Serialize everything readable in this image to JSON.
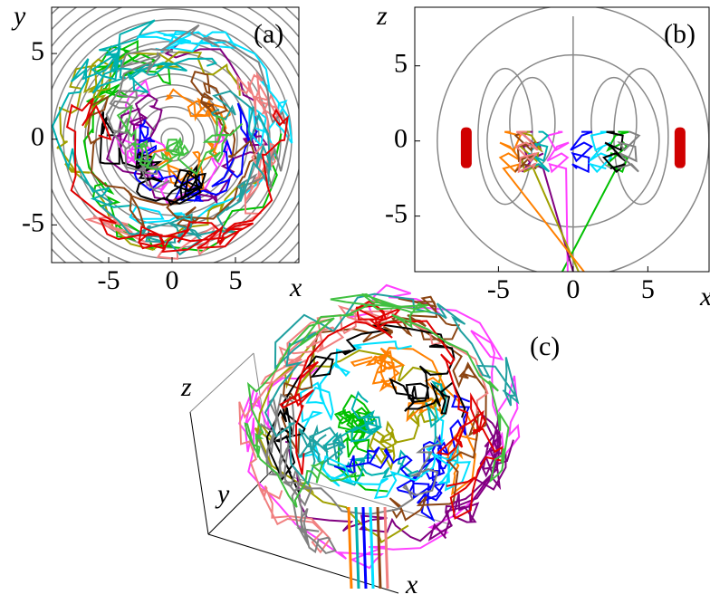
{
  "chart_data": [
    {
      "type": "contour",
      "label": "(a)",
      "xlabel": "x",
      "ylabel": "y",
      "xlim": [
        -9.5,
        10
      ],
      "ylim": [
        -7.2,
        7.7
      ],
      "xticks": [
        -5,
        0,
        5
      ],
      "yticks": [
        -5,
        0,
        5
      ]
    },
    {
      "type": "lobes",
      "label": "(b)",
      "xlabel": "x",
      "ylabel": "z",
      "xlim": [
        -10.6,
        9.1
      ],
      "ylim": [
        -8.7,
        8.9
      ],
      "xticks": [
        -5,
        0,
        5
      ],
      "yticks": [
        -5,
        0,
        5
      ]
    },
    {
      "type": "perspective",
      "label": "(c)",
      "xlabel": "x",
      "ylabel": "y",
      "zlabel": "z"
    }
  ]
}
